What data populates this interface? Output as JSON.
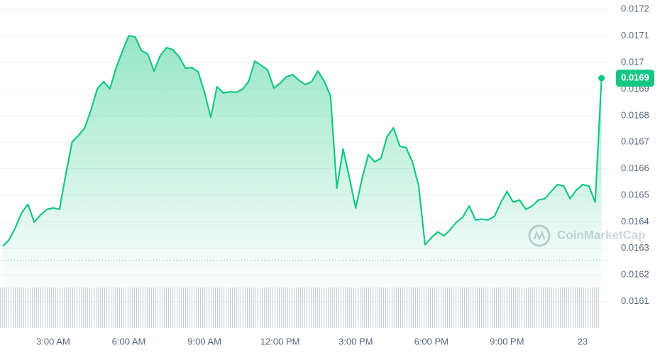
{
  "chart_data": {
    "type": "line",
    "x": [
      1,
      1.25,
      1.5,
      1.75,
      2,
      2.25,
      2.5,
      2.75,
      3,
      3.25,
      3.5,
      3.75,
      4,
      4.25,
      4.5,
      4.75,
      5,
      5.25,
      5.5,
      5.75,
      6,
      6.25,
      6.5,
      6.75,
      7,
      7.25,
      7.5,
      7.75,
      8,
      8.25,
      8.5,
      8.75,
      9,
      9.25,
      9.5,
      9.75,
      10,
      10.25,
      10.5,
      10.75,
      11,
      11.25,
      11.5,
      11.75,
      12,
      12.25,
      12.5,
      12.75,
      13,
      13.25,
      13.5,
      13.75,
      14,
      14.25,
      14.5,
      14.75,
      15,
      15.25,
      15.5,
      15.75,
      16,
      16.25,
      16.5,
      16.75,
      17,
      17.25,
      17.5,
      17.75,
      18,
      18.25,
      18.5,
      18.75,
      19,
      19.25,
      19.5,
      19.75,
      20,
      20.25,
      20.5,
      20.75,
      21,
      21.25,
      21.5,
      21.75,
      22,
      22.25,
      22.5,
      22.75,
      23,
      23.25,
      23.5,
      23.75,
      24,
      24.25,
      24.5,
      24.75
    ],
    "series": [
      {
        "color": "#16c784",
        "values": [
          0.016308,
          0.016332,
          0.016378,
          0.016434,
          0.016466,
          0.016399,
          0.016426,
          0.016447,
          0.016452,
          0.016447,
          0.016578,
          0.016701,
          0.016725,
          0.016754,
          0.016821,
          0.016901,
          0.016928,
          0.016901,
          0.016981,
          0.017043,
          0.017101,
          0.017096,
          0.017045,
          0.017032,
          0.016968,
          0.017026,
          0.017056,
          0.017048,
          0.017021,
          0.016978,
          0.016981,
          0.016965,
          0.016888,
          0.016794,
          0.016909,
          0.016885,
          0.01689,
          0.016888,
          0.016898,
          0.016928,
          0.017005,
          0.016989,
          0.016973,
          0.016904,
          0.016922,
          0.016946,
          0.016954,
          0.016933,
          0.016917,
          0.016928,
          0.016968,
          0.01693,
          0.016874,
          0.016527,
          0.016674,
          0.016567,
          0.016452,
          0.016562,
          0.016653,
          0.016626,
          0.016639,
          0.016722,
          0.016754,
          0.016685,
          0.016679,
          0.016626,
          0.016535,
          0.016314,
          0.01634,
          0.016362,
          0.016348,
          0.01637,
          0.016399,
          0.016418,
          0.01646,
          0.016407,
          0.01641,
          0.016407,
          0.01642,
          0.016471,
          0.016514,
          0.016474,
          0.016482,
          0.016447,
          0.01646,
          0.016482,
          0.016487,
          0.016514,
          0.01654,
          0.016535,
          0.016487,
          0.016519,
          0.01654,
          0.016535,
          0.016474,
          0.016941
        ]
      }
    ],
    "baseline": 0.016255,
    "last_price_label": "0.0169",
    "watermark": "CoinMarketCap",
    "xlim": [
      0.89,
      25.1
    ],
    "xticks": [
      {
        "value": 3,
        "label": "3:00 AM"
      },
      {
        "value": 6,
        "label": "6:00 AM"
      },
      {
        "value": 9,
        "label": "9:00 AM"
      },
      {
        "value": 12,
        "label": "12:00 PM"
      },
      {
        "value": 15,
        "label": "3:00 PM"
      },
      {
        "value": 18,
        "label": "6:00 PM"
      },
      {
        "value": 21,
        "label": "9:00 PM"
      },
      {
        "value": 24,
        "label": "23"
      }
    ],
    "ylim": [
      0.016,
      0.01723
    ],
    "yticks": [
      0.0161,
      0.0162,
      0.0163,
      0.0164,
      0.0165,
      0.0166,
      0.0167,
      0.0168,
      0.0169,
      0.017,
      0.0171,
      0.0172
    ],
    "grid": true
  }
}
